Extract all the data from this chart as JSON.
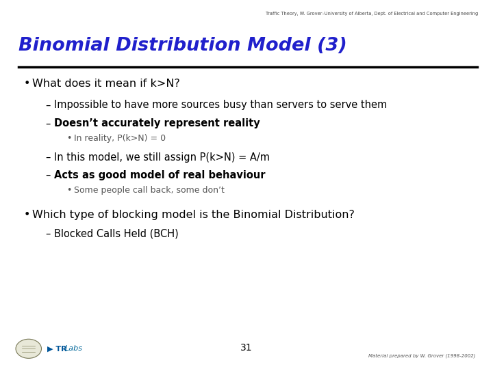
{
  "header_text": "Traffic Theory, W. Grover–University of Alberta, Dept. of Electrical and Computer Engineering",
  "title": "Binomial Distribution Model (3)",
  "title_color": "#2020CC",
  "bg_color": "#FFFFFF",
  "footer_page": "31",
  "footer_right": "Material prepared by W. Grover (1998-2002)",
  "bullet1": "What does it mean if k>N?",
  "dash1_1": "Impossible to have more sources busy than servers to serve them",
  "dash1_2": "Doesn’t accurately represent reality",
  "sub1_2_1": "In reality, P(k>N) = 0",
  "dash1_3": "In this model, we still assign P(k>N) = A/m",
  "dash1_4": "Acts as good model of real behaviour",
  "sub1_4_1": "Some people call back, some don’t",
  "bullet2": "Which type of blocking model is the Binomial Distribution?",
  "dash2_1": "Blocked Calls Held (BCH)"
}
